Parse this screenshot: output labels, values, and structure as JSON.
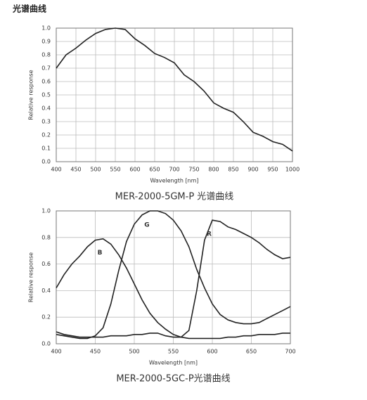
{
  "page_title": "光谱曲线",
  "chart_data": [
    {
      "type": "line",
      "title": "MER-2000-5GM-P 光谱曲线",
      "xlabel": "Wavelength [nm]",
      "ylabel": "Relative response",
      "x": [
        400,
        425,
        450,
        475,
        500,
        525,
        550,
        575,
        600,
        625,
        650,
        675,
        700,
        725,
        750,
        775,
        800,
        825,
        850,
        875,
        900,
        925,
        950,
        975,
        1000
      ],
      "series": [
        {
          "name": null,
          "color": "#222222",
          "values": [
            0.7,
            0.8,
            0.85,
            0.91,
            0.96,
            0.99,
            1.0,
            0.99,
            0.92,
            0.87,
            0.81,
            0.78,
            0.74,
            0.65,
            0.6,
            0.53,
            0.44,
            0.4,
            0.37,
            0.3,
            0.22,
            0.19,
            0.15,
            0.13,
            0.08
          ]
        }
      ],
      "xlim": [
        400,
        1000
      ],
      "xticks": [
        400,
        450,
        500,
        550,
        600,
        650,
        700,
        750,
        800,
        850,
        900,
        950,
        1000
      ],
      "ylim": [
        0,
        1
      ],
      "yticks": [
        {
          "value": 0,
          "label": "0.0"
        },
        0.1,
        0.2,
        0.3,
        0.4,
        0.5,
        0.6,
        0.7,
        0.8,
        0.9,
        {
          "value": 1,
          "label": "1.0"
        }
      ],
      "grid": true
    },
    {
      "type": "line",
      "title": "MER-2000-5GC-P光谱曲线",
      "xlabel": "Wavelength [nm]",
      "ylabel": "Relative response",
      "x": [
        400,
        410,
        420,
        430,
        440,
        450,
        460,
        470,
        480,
        490,
        500,
        510,
        520,
        530,
        540,
        550,
        560,
        570,
        580,
        590,
        600,
        610,
        620,
        630,
        640,
        650,
        660,
        670,
        680,
        690,
        700
      ],
      "series": [
        {
          "name": "B",
          "color": "#222222",
          "values": [
            0.42,
            0.52,
            0.6,
            0.66,
            0.73,
            0.78,
            0.79,
            0.75,
            0.67,
            0.57,
            0.45,
            0.33,
            0.23,
            0.16,
            0.11,
            0.07,
            0.05,
            0.04,
            0.04,
            0.04,
            0.04,
            0.04,
            0.05,
            0.05,
            0.06,
            0.06,
            0.07,
            0.07,
            0.07,
            0.08,
            0.08
          ]
        },
        {
          "name": "G",
          "color": "#222222",
          "values": [
            0.07,
            0.06,
            0.05,
            0.04,
            0.04,
            0.06,
            0.12,
            0.3,
            0.55,
            0.77,
            0.9,
            0.97,
            1.0,
            1.0,
            0.98,
            0.93,
            0.85,
            0.73,
            0.56,
            0.42,
            0.3,
            0.22,
            0.18,
            0.16,
            0.15,
            0.15,
            0.16,
            0.19,
            0.22,
            0.25,
            0.28
          ]
        },
        {
          "name": "R",
          "color": "#222222",
          "values": [
            0.09,
            0.07,
            0.06,
            0.05,
            0.05,
            0.05,
            0.05,
            0.06,
            0.06,
            0.06,
            0.07,
            0.07,
            0.08,
            0.08,
            0.06,
            0.05,
            0.05,
            0.1,
            0.4,
            0.78,
            0.93,
            0.92,
            0.88,
            0.86,
            0.83,
            0.8,
            0.76,
            0.71,
            0.67,
            0.64,
            0.65
          ]
        }
      ],
      "xlim": [
        400,
        700
      ],
      "xticks": [
        400,
        450,
        500,
        550,
        600,
        650,
        700
      ],
      "ylim": [
        0,
        1
      ],
      "yticks": [
        {
          "value": 0,
          "label": "0.0"
        },
        0.2,
        0.4,
        0.6,
        0.8,
        {
          "value": 1,
          "label": "1.0"
        }
      ],
      "grid": true
    }
  ]
}
